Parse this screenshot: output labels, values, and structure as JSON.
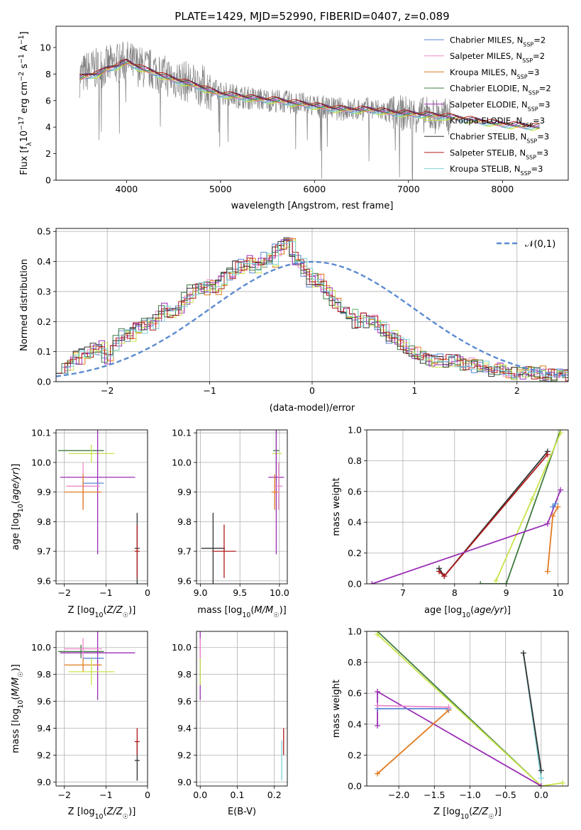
{
  "figure_title": "PLATE=1429, MJD=52990, FIBERID=0407, z=0.089",
  "colors": {
    "chabrier_miles": "#5b86d6",
    "salpeter_miles": "#ee88cc",
    "kroupa_miles": "#e07a1f",
    "chabrier_elodie": "#3f7a3f",
    "salpeter_elodie": "#9b2fb5",
    "kroupa_elodie": "#c8e34a",
    "chabrier_stelib": "#333333",
    "salpeter_stelib": "#b01a1a",
    "kroupa_stelib": "#7ed3d6",
    "data": "#808080",
    "grid": "#b0b0b0",
    "normal": "#5b8bd0"
  },
  "chart_data": [
    {
      "id": "spectrum",
      "type": "line",
      "title": "PLATE=1429, MJD=52990, FIBERID=0407, z=0.089",
      "xlabel": "wavelength [Angstrom, rest frame]",
      "ylabel": "Flux [f_λ10^-17 erg cm^-2 s^-1 A^-1]",
      "xlim": [
        3250,
        8700
      ],
      "ylim": [
        0,
        11.6
      ],
      "xticks": [
        4000,
        5000,
        6000,
        7000,
        8000
      ],
      "yticks": [
        0,
        2,
        4,
        6,
        8,
        10
      ],
      "grid": false,
      "legend_position": "top-right",
      "legend": [
        "Chabrier MILES, N_SSP=2",
        "Salpeter MILES, N_SSP=2",
        "Kroupa MILES, N_SSP=3",
        "Chabrier ELODIE, N_SSP=2",
        "Salpeter ELODIE, N_SSP=3",
        "Kroupa ELODIE, N_SSP=3",
        "Chabrier STELIB, N_SSP=3",
        "Salpeter STELIB, N_SSP=3",
        "Kroupa STELIB, N_SSP=3"
      ],
      "series": [
        {
          "name": "data",
          "x": [
            3500,
            3600,
            3700,
            3800,
            3900,
            4000,
            4100,
            4200,
            4300,
            4400,
            4500,
            4600,
            4700,
            4800,
            4900,
            5000,
            5200,
            5400,
            5600,
            5800,
            6000,
            6200,
            6400,
            6600,
            6800,
            7000,
            7200,
            7400,
            7600,
            7800,
            8000,
            8200,
            8400
          ],
          "y": [
            7.8,
            8.3,
            8.4,
            8.6,
            8.8,
            9.0,
            8.7,
            8.4,
            8.3,
            7.9,
            7.7,
            7.5,
            7.3,
            7.1,
            6.8,
            6.6,
            6.3,
            6.1,
            6.0,
            5.8,
            5.6,
            5.4,
            5.3,
            5.4,
            5.1,
            5.0,
            4.9,
            4.8,
            4.5,
            4.3,
            4.1,
            4.0,
            3.9
          ]
        },
        {
          "name": "model",
          "x": [
            3500,
            3600,
            3700,
            3800,
            3900,
            4000,
            4100,
            4200,
            4300,
            4400,
            4500,
            4600,
            4700,
            4800,
            4900,
            5000,
            5200,
            5400,
            5600,
            5800,
            6000,
            6200,
            6400,
            6600,
            6800,
            7000,
            7200,
            7400,
            7600,
            7800,
            8000,
            8200,
            8400
          ],
          "y": [
            7.7,
            7.9,
            8.0,
            8.4,
            8.6,
            8.9,
            8.6,
            8.3,
            8.1,
            7.8,
            7.6,
            7.4,
            7.2,
            7.0,
            6.7,
            6.5,
            6.3,
            6.1,
            6.0,
            5.8,
            5.6,
            5.4,
            5.3,
            5.3,
            5.1,
            5.0,
            4.9,
            4.8,
            4.6,
            4.4,
            4.2,
            4.1,
            4.0
          ]
        }
      ]
    },
    {
      "id": "residual_histogram",
      "type": "line",
      "xlabel": "(data-model)/error",
      "ylabel": "Normed distribution",
      "xlim": [
        -2.5,
        2.5
      ],
      "ylim": [
        0,
        0.51
      ],
      "xticks": [
        -2,
        -1,
        0,
        1,
        2
      ],
      "yticks": [
        0.0,
        0.1,
        0.2,
        0.3,
        0.4,
        0.5
      ],
      "grid": true,
      "legend_position": "top-right",
      "legend": [
        "𝒩(0,1)"
      ],
      "bin_width": 0.1,
      "x_start": -2.5,
      "values": [
        0.05,
        0.05,
        0.08,
        0.08,
        0.09,
        0.1,
        0.11,
        0.12,
        0.08,
        0.1,
        0.14,
        0.16,
        0.15,
        0.18,
        0.18,
        0.19,
        0.19,
        0.22,
        0.24,
        0.23,
        0.24,
        0.25,
        0.28,
        0.3,
        0.31,
        0.31,
        0.32,
        0.31,
        0.33,
        0.35,
        0.36,
        0.38,
        0.39,
        0.4,
        0.38,
        0.39,
        0.41,
        0.4,
        0.44,
        0.46,
        0.47,
        0.41,
        0.4,
        0.36,
        0.33,
        0.34,
        0.32,
        0.29,
        0.26,
        0.25,
        0.23,
        0.22,
        0.2,
        0.22,
        0.2,
        0.2,
        0.18,
        0.17,
        0.15,
        0.14,
        0.12,
        0.11,
        0.1,
        0.09,
        0.08,
        0.07,
        0.07,
        0.07,
        0.07,
        0.07,
        0.07,
        0.06,
        0.06,
        0.05,
        0.05,
        0.05,
        0.04,
        0.04,
        0.03,
        0.03,
        0.03,
        0.03,
        0.03,
        0.03,
        0.03,
        0.02,
        0.02,
        0.02,
        0.02,
        0.02
      ]
    },
    {
      "id": "age_vs_z",
      "type": "scatter",
      "xlabel": "Z [log10(Z/Z☉)]",
      "ylabel": "age [log10(age/yr)]",
      "xlim": [
        -2.2,
        0.0
      ],
      "ylim": [
        9.59,
        10.11
      ],
      "xticks": [
        -2,
        -1,
        0
      ],
      "yticks": [
        9.6,
        9.7,
        9.8,
        9.9,
        10.0,
        10.1
      ],
      "grid": true,
      "points": [
        {
          "x": -1.6,
          "y": 10.04,
          "xerr": 0.55,
          "yerr": 0.0,
          "color": "chabrier_elodie"
        },
        {
          "x": -1.35,
          "y": 10.03,
          "xerr": 0.55,
          "yerr": 0.03,
          "color": "kroupa_elodie"
        },
        {
          "x": -1.2,
          "y": 9.95,
          "xerr": 0.9,
          "yerr": 0.26,
          "color": "salpeter_elodie"
        },
        {
          "x": -1.55,
          "y": 9.92,
          "xerr": 0.4,
          "yerr": 0.08,
          "color": "salpeter_miles"
        },
        {
          "x": -1.55,
          "y": 9.9,
          "xerr": 0.45,
          "yerr": 0.06,
          "color": "kroupa_miles"
        },
        {
          "x": -1.3,
          "y": 9.93,
          "xerr": 0.25,
          "yerr": 0.0,
          "color": "chabrier_miles"
        },
        {
          "x": -0.25,
          "y": 9.71,
          "xerr": 0.06,
          "yerr": 0.12,
          "color": "chabrier_stelib"
        },
        {
          "x": -0.25,
          "y": 9.7,
          "xerr": 0.06,
          "yerr": 0.09,
          "color": "salpeter_stelib"
        }
      ]
    },
    {
      "id": "age_vs_mass",
      "type": "scatter",
      "xlabel": "mass [log10(M/M☉)]",
      "ylabel": "",
      "xlim": [
        8.95,
        10.1
      ],
      "ylim": [
        9.59,
        10.11
      ],
      "xticks": [
        9.0,
        9.5,
        10.0
      ],
      "yticks": [
        9.6,
        9.7,
        9.8,
        9.9,
        10.0,
        10.1
      ],
      "grid": true,
      "points": [
        {
          "x": 9.97,
          "y": 10.03,
          "xerr": 0.06,
          "yerr": 0.0,
          "color": "kroupa_elodie"
        },
        {
          "x": 9.96,
          "y": 10.04,
          "xerr": 0.04,
          "yerr": 0.1,
          "color": "chabrier_elodie"
        },
        {
          "x": 9.96,
          "y": 9.95,
          "xerr": 0.1,
          "yerr": 0.26,
          "color": "salpeter_elodie"
        },
        {
          "x": 9.99,
          "y": 9.92,
          "xerr": 0.05,
          "yerr": 0.08,
          "color": "salpeter_miles"
        },
        {
          "x": 9.94,
          "y": 9.9,
          "xerr": 0.04,
          "yerr": 0.06,
          "color": "kroupa_miles"
        },
        {
          "x": 9.16,
          "y": 9.71,
          "xerr": 0.15,
          "yerr": 0.12,
          "color": "chabrier_stelib"
        },
        {
          "x": 9.3,
          "y": 9.7,
          "xerr": 0.15,
          "yerr": 0.09,
          "color": "salpeter_stelib"
        }
      ]
    },
    {
      "id": "mass_weight_vs_age",
      "type": "line",
      "xlabel": "age [log10(age/yr)]",
      "ylabel": "mass weight",
      "xlim": [
        6.3,
        10.2
      ],
      "ylim": [
        0,
        1
      ],
      "xticks": [
        7,
        8,
        9,
        10
      ],
      "yticks": [
        0.0,
        0.2,
        0.4,
        0.6,
        0.8,
        1.0
      ],
      "grid": true,
      "series": [
        {
          "color": "kroupa_stelib",
          "x": [
            7.7,
            7.8,
            9.8
          ],
          "y": [
            0.09,
            0.05,
            0.86
          ]
        },
        {
          "color": "chabrier_stelib",
          "x": [
            7.7,
            7.8,
            9.8
          ],
          "y": [
            0.1,
            0.05,
            0.86
          ]
        },
        {
          "color": "salpeter_stelib",
          "x": [
            7.7,
            7.8,
            9.8
          ],
          "y": [
            0.08,
            0.05,
            0.84
          ]
        },
        {
          "color": "chabrier_elodie",
          "x": [
            8.5,
            9.0,
            10.05
          ],
          "y": [
            0.0,
            0.0,
            1.0
          ]
        },
        {
          "color": "kroupa_elodie",
          "x": [
            8.8,
            9.5,
            10.05
          ],
          "y": [
            0.02,
            0.55,
            0.98
          ]
        },
        {
          "color": "salpeter_elodie",
          "x": [
            6.4,
            9.8,
            10.05
          ],
          "y": [
            0.0,
            0.39,
            0.61
          ]
        },
        {
          "color": "kroupa_miles",
          "x": [
            9.8,
            9.9,
            10.0
          ],
          "y": [
            0.08,
            0.44,
            0.5
          ]
        },
        {
          "color": "chabrier_miles",
          "x": [
            9.9,
            9.95
          ],
          "y": [
            0.5,
            0.52
          ]
        }
      ]
    },
    {
      "id": "mass_vs_z",
      "type": "scatter",
      "xlabel": "Z [log10(Z/Z☉)]",
      "ylabel": "mass [log10(M/M☉)]",
      "xlim": [
        -2.2,
        0.0
      ],
      "ylim": [
        8.97,
        10.12
      ],
      "xticks": [
        -2,
        -1,
        0
      ],
      "yticks": [
        9.0,
        9.2,
        9.4,
        9.6,
        9.8,
        10.0
      ],
      "grid": true,
      "points": [
        {
          "x": -1.6,
          "y": 9.97,
          "xerr": 0.55,
          "yerr": 0.05,
          "color": "chabrier_elodie"
        },
        {
          "x": -1.2,
          "y": 9.96,
          "xerr": 0.9,
          "yerr": 0.35,
          "color": "salpeter_elodie"
        },
        {
          "x": -1.55,
          "y": 9.99,
          "xerr": 0.45,
          "yerr": 0.08,
          "color": "salpeter_miles"
        },
        {
          "x": -1.55,
          "y": 9.87,
          "xerr": 0.45,
          "yerr": 0.05,
          "color": "kroupa_miles"
        },
        {
          "x": -1.3,
          "y": 9.92,
          "xerr": 0.25,
          "yerr": 0.0,
          "color": "chabrier_miles"
        },
        {
          "x": -1.35,
          "y": 9.82,
          "xerr": 0.55,
          "yerr": 0.1,
          "color": "kroupa_elodie"
        },
        {
          "x": -0.25,
          "y": 9.16,
          "xerr": 0.06,
          "yerr": 0.15,
          "color": "chabrier_stelib"
        },
        {
          "x": -0.25,
          "y": 9.3,
          "xerr": 0.06,
          "yerr": 0.1,
          "color": "salpeter_stelib"
        }
      ]
    },
    {
      "id": "mass_vs_ebv",
      "type": "scatter",
      "xlabel": "E(B-V)",
      "ylabel": "",
      "xlim": [
        -0.01,
        0.235
      ],
      "ylim": [
        8.97,
        10.12
      ],
      "xticks": [
        0.0,
        0.1,
        0.2
      ],
      "yticks": [
        9.0,
        9.2,
        9.4,
        9.6,
        9.8,
        10.0
      ],
      "grid": true,
      "points": [
        {
          "x": 0.0,
          "y": 9.96,
          "xerr": 0.0,
          "yerr": 0.35,
          "color": "salpeter_elodie"
        },
        {
          "x": 0.0,
          "y": 9.99,
          "xerr": 0.0,
          "yerr": 0.08,
          "color": "salpeter_miles"
        },
        {
          "x": 0.0,
          "y": 9.82,
          "xerr": 0.0,
          "yerr": 0.1,
          "color": "kroupa_elodie"
        },
        {
          "x": 0.22,
          "y": 9.16,
          "xerr": 0.0,
          "yerr": 0.15,
          "color": "kroupa_stelib"
        },
        {
          "x": 0.225,
          "y": 9.3,
          "xerr": 0.0,
          "yerr": 0.1,
          "color": "salpeter_stelib"
        }
      ]
    },
    {
      "id": "mass_weight_vs_z",
      "type": "line",
      "xlabel": "Z [log10(Z/Z☉)]",
      "ylabel": "mass weight",
      "xlim": [
        -2.45,
        0.38
      ],
      "ylim": [
        0,
        1
      ],
      "xticks": [
        -2.0,
        -1.5,
        -1.0,
        -0.5,
        0.0
      ],
      "yticks": [
        0.0,
        0.2,
        0.4,
        0.6,
        0.8,
        1.0
      ],
      "grid": true,
      "series": [
        {
          "color": "kroupa_stelib",
          "x": [
            -0.25,
            0.0
          ],
          "y": [
            0.86,
            0.05
          ]
        },
        {
          "color": "chabrier_stelib",
          "x": [
            -0.25,
            0.0
          ],
          "y": [
            0.86,
            0.1
          ]
        },
        {
          "color": "chabrier_elodie",
          "x": [
            -2.3,
            0.0
          ],
          "y": [
            1.0,
            0.0
          ]
        },
        {
          "color": "kroupa_elodie",
          "x": [
            -2.3,
            0.0,
            0.3
          ],
          "y": [
            0.98,
            0.0,
            0.02
          ]
        },
        {
          "color": "salpeter_elodie",
          "x": [
            -2.3,
            -2.3,
            0.0
          ],
          "y": [
            0.39,
            0.61,
            0.0
          ]
        },
        {
          "color": "kroupa_miles",
          "x": [
            -2.3,
            -1.3
          ],
          "y": [
            0.08,
            0.49
          ]
        },
        {
          "color": "chabrier_miles",
          "x": [
            -2.3,
            -1.3
          ],
          "y": [
            0.5,
            0.5
          ]
        },
        {
          "color": "salpeter_miles",
          "x": [
            -2.3,
            -1.3
          ],
          "y": [
            0.52,
            0.51
          ]
        }
      ]
    }
  ]
}
